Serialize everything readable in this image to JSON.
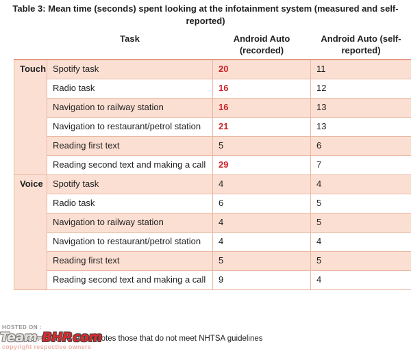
{
  "page": {
    "title": "Table 3: Mean time (seconds) spent looking at the infotainment system (measured and self-reported)",
    "note": "Note: Bold red text denotes those that do not meet NHTSA guidelines"
  },
  "table": {
    "headers": {
      "task": "Task",
      "recorded": "Android Auto (recorded)",
      "self_reported": "Android Auto (self-reported)"
    },
    "groups": [
      {
        "label": "Touch",
        "rows": [
          {
            "task": "Spotify task",
            "recorded": "20",
            "recorded_exceeds": true,
            "self_reported": "11"
          },
          {
            "task": "Radio task",
            "recorded": "16",
            "recorded_exceeds": true,
            "self_reported": "12"
          },
          {
            "task": "Navigation to railway station",
            "recorded": "16",
            "recorded_exceeds": true,
            "self_reported": "13"
          },
          {
            "task": "Navigation to restaurant/petrol station",
            "recorded": "21",
            "recorded_exceeds": true,
            "self_reported": "13"
          },
          {
            "task": "Reading first text",
            "recorded": "5",
            "recorded_exceeds": false,
            "self_reported": "6"
          },
          {
            "task": "Reading second text and making a call",
            "recorded": "29",
            "recorded_exceeds": true,
            "self_reported": "7"
          }
        ]
      },
      {
        "label": "Voice",
        "rows": [
          {
            "task": "Spotify task",
            "recorded": "4",
            "recorded_exceeds": false,
            "self_reported": "4"
          },
          {
            "task": "Radio task",
            "recorded": "6",
            "recorded_exceeds": false,
            "self_reported": "5"
          },
          {
            "task": "Navigation to railway station",
            "recorded": "4",
            "recorded_exceeds": false,
            "self_reported": "5"
          },
          {
            "task": "Navigation to restaurant/petrol station",
            "recorded": "4",
            "recorded_exceeds": false,
            "self_reported": "4"
          },
          {
            "task": "Reading first text",
            "recorded": "5",
            "recorded_exceeds": false,
            "self_reported": "5"
          },
          {
            "task": "Reading second text and making a call",
            "recorded": "9",
            "recorded_exceeds": false,
            "self_reported": "4"
          }
        ]
      }
    ]
  },
  "watermark": {
    "hosted_on": "HOSTED ON :",
    "logo_team": "Team-",
    "logo_bhp": "BHP.com",
    "copyright": "copyright respective owners"
  },
  "colors": {
    "row_pink": "#fbdfd2",
    "grid_border": "#e9b8a2",
    "header_rule": "#e59b80",
    "accent_red": "#cc2127"
  }
}
